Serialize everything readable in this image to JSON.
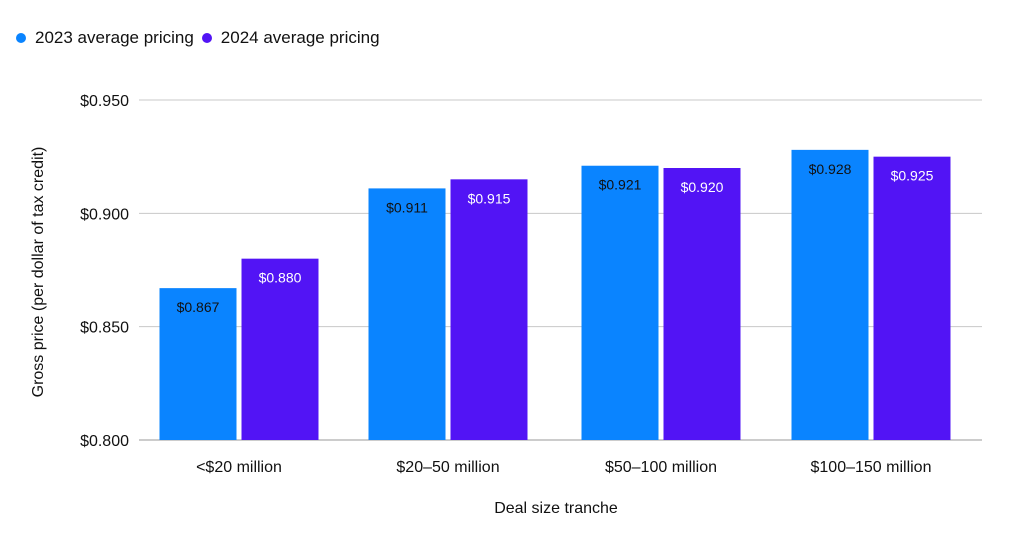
{
  "legend": {
    "items": [
      {
        "label": "2023 average pricing",
        "color": "#0A84FF"
      },
      {
        "label": "2024 average pricing",
        "color": "#5214F5"
      }
    ]
  },
  "chart_data": {
    "type": "bar",
    "title": "",
    "xlabel": "Deal size tranche",
    "ylabel": "Gross price (per dollar of tax credit)",
    "ylim": [
      0.8,
      0.95
    ],
    "yticks": [
      0.8,
      0.85,
      0.9,
      0.95
    ],
    "ytick_labels": [
      "$0.800",
      "$0.850",
      "$0.900",
      "$0.950"
    ],
    "categories": [
      "<$20 million",
      "$20–50 million",
      "$50–100 million",
      "$100–150 million"
    ],
    "series": [
      {
        "name": "2023 average pricing",
        "color": "#0A84FF",
        "label_color": "#111111",
        "values": [
          0.867,
          0.911,
          0.921,
          0.928
        ],
        "labels": [
          "$0.867",
          "$0.911",
          "$0.921",
          "$0.928"
        ]
      },
      {
        "name": "2024 average pricing",
        "color": "#5214F5",
        "label_color": "#ffffff",
        "values": [
          0.88,
          0.915,
          0.92,
          0.925
        ],
        "labels": [
          "$0.880",
          "$0.915",
          "$0.920",
          "$0.925"
        ]
      }
    ],
    "grid": true,
    "legend_position": "top-left"
  }
}
